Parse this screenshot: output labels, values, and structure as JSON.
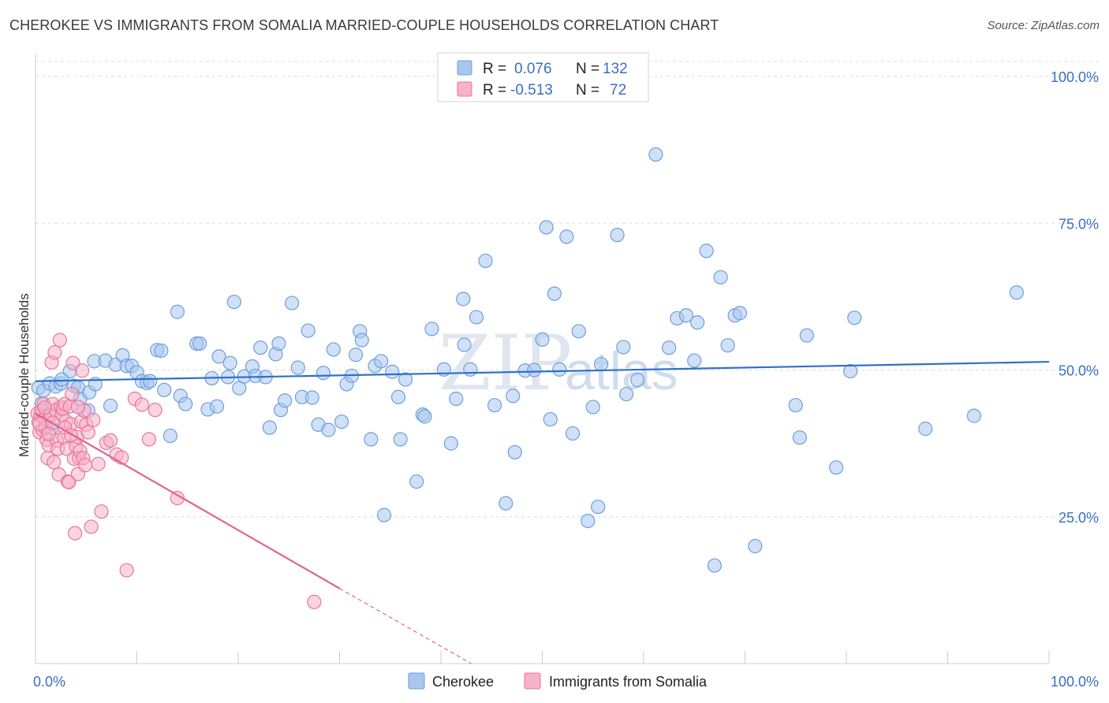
{
  "header": {
    "title": "CHEROKEE VS IMMIGRANTS FROM SOMALIA MARRIED-COUPLE HOUSEHOLDS CORRELATION CHART",
    "source": "Source: ZipAtlas.com"
  },
  "watermark": {
    "zip": "ZIP",
    "atlas": "atlas"
  },
  "legend_top": {
    "rows": [
      {
        "r_label": "R =",
        "r_value": "0.076",
        "n_label": "N =",
        "n_value": "132",
        "color": "#a9c6ee"
      },
      {
        "r_label": "R =",
        "r_value": "-0.513",
        "n_label": "N =",
        "n_value": "72",
        "color": "#f5b3c8"
      }
    ]
  },
  "legend_bottom": {
    "items": [
      {
        "label": "Cherokee",
        "color": "#a9c6ee"
      },
      {
        "label": "Immigrants from Somalia",
        "color": "#f5b3c8"
      }
    ]
  },
  "chart_data": {
    "type": "scatter",
    "title": "CHEROKEE VS IMMIGRANTS FROM SOMALIA MARRIED-COUPLE HOUSEHOLDS CORRELATION CHART",
    "xlabel": "",
    "ylabel": "Married-couple Households",
    "xlim": [
      0,
      100
    ],
    "ylim": [
      0,
      100
    ],
    "y_ticks": [
      {
        "value": 25,
        "label": "25.0%"
      },
      {
        "value": 50,
        "label": "50.0%"
      },
      {
        "value": 75,
        "label": "75.0%"
      },
      {
        "value": 100,
        "label": "100.0%"
      }
    ],
    "x_ticks": [
      {
        "value": 0,
        "label": "0.0%"
      },
      {
        "value": 100,
        "label": "100.0%"
      }
    ],
    "grid": true,
    "legend_placement": "top-center",
    "series": [
      {
        "name": "Cherokee",
        "color": "#6e9fdd",
        "fill": "#a9c6ee",
        "trend": {
          "x": [
            0,
            100
          ],
          "y": [
            48.1,
            51.4
          ],
          "color": "#2f6fcb"
        },
        "points": [
          [
            0.3,
            47.0
          ],
          [
            0.8,
            46.5
          ],
          [
            1.4,
            47.7
          ],
          [
            2.0,
            47.2
          ],
          [
            2.5,
            47.7
          ],
          [
            3.4,
            49.8
          ],
          [
            3.8,
            47.3
          ],
          [
            4.2,
            47.0
          ],
          [
            4.4,
            45.1
          ],
          [
            5.2,
            43.1
          ],
          [
            5.3,
            46.2
          ],
          [
            5.9,
            47.6
          ],
          [
            5.8,
            51.5
          ],
          [
            6.9,
            51.6
          ],
          [
            7.4,
            43.9
          ],
          [
            7.9,
            50.9
          ],
          [
            8.6,
            52.5
          ],
          [
            9.0,
            50.7
          ],
          [
            9.5,
            50.7
          ],
          [
            10.0,
            49.6
          ],
          [
            10.5,
            48.1
          ],
          [
            11.0,
            47.8
          ],
          [
            11.3,
            48.1
          ],
          [
            12.0,
            53.4
          ],
          [
            12.4,
            53.3
          ],
          [
            12.7,
            46.6
          ],
          [
            13.3,
            38.8
          ],
          [
            14.0,
            59.9
          ],
          [
            14.3,
            45.6
          ],
          [
            14.8,
            44.2
          ],
          [
            15.9,
            54.5
          ],
          [
            16.2,
            54.5
          ],
          [
            17.0,
            43.3
          ],
          [
            17.4,
            48.6
          ],
          [
            17.9,
            43.8
          ],
          [
            18.1,
            52.3
          ],
          [
            19.0,
            48.8
          ],
          [
            19.2,
            51.2
          ],
          [
            19.6,
            61.6
          ],
          [
            20.1,
            46.9
          ],
          [
            20.6,
            48.9
          ],
          [
            21.4,
            50.6
          ],
          [
            21.7,
            49.0
          ],
          [
            22.2,
            53.8
          ],
          [
            22.7,
            48.8
          ],
          [
            23.1,
            40.2
          ],
          [
            23.7,
            52.7
          ],
          [
            24.0,
            54.5
          ],
          [
            24.2,
            43.2
          ],
          [
            24.6,
            44.8
          ],
          [
            25.3,
            61.4
          ],
          [
            25.9,
            50.4
          ],
          [
            26.3,
            45.4
          ],
          [
            26.9,
            56.7
          ],
          [
            27.3,
            45.3
          ],
          [
            27.9,
            40.7
          ],
          [
            28.4,
            49.5
          ],
          [
            28.9,
            39.8
          ],
          [
            29.4,
            53.5
          ],
          [
            30.2,
            41.2
          ],
          [
            30.7,
            47.6
          ],
          [
            31.2,
            49.0
          ],
          [
            31.6,
            52.6
          ],
          [
            32.0,
            56.6
          ],
          [
            32.2,
            55.1
          ],
          [
            33.1,
            38.2
          ],
          [
            33.5,
            50.7
          ],
          [
            34.1,
            51.5
          ],
          [
            34.4,
            25.3
          ],
          [
            35.2,
            49.7
          ],
          [
            35.8,
            45.4
          ],
          [
            36.0,
            38.2
          ],
          [
            36.5,
            48.4
          ],
          [
            37.6,
            31.0
          ],
          [
            38.2,
            42.4
          ],
          [
            38.4,
            42.1
          ],
          [
            39.1,
            57.0
          ],
          [
            40.3,
            50.1
          ],
          [
            41.0,
            37.5
          ],
          [
            41.5,
            45.1
          ],
          [
            42.2,
            62.1
          ],
          [
            42.3,
            54.3
          ],
          [
            42.9,
            50.1
          ],
          [
            43.5,
            59.0
          ],
          [
            44.4,
            68.6
          ],
          [
            45.3,
            44.0
          ],
          [
            46.4,
            27.3
          ],
          [
            47.1,
            45.6
          ],
          [
            47.3,
            36.0
          ],
          [
            48.3,
            49.9
          ],
          [
            49.2,
            50.0
          ],
          [
            50.0,
            55.2
          ],
          [
            50.4,
            74.3
          ],
          [
            50.8,
            41.6
          ],
          [
            51.2,
            63.0
          ],
          [
            51.7,
            50.1
          ],
          [
            52.4,
            72.7
          ],
          [
            53.0,
            39.2
          ],
          [
            53.6,
            56.6
          ],
          [
            54.5,
            24.3
          ],
          [
            55.0,
            43.7
          ],
          [
            55.5,
            26.7
          ],
          [
            55.8,
            51.0
          ],
          [
            57.4,
            73.0
          ],
          [
            58.0,
            53.9
          ],
          [
            58.3,
            45.9
          ],
          [
            59.4,
            48.3
          ],
          [
            61.2,
            86.7
          ],
          [
            62.5,
            53.8
          ],
          [
            63.3,
            58.8
          ],
          [
            64.2,
            59.3
          ],
          [
            65.0,
            51.6
          ],
          [
            65.3,
            58.1
          ],
          [
            66.2,
            70.3
          ],
          [
            67.0,
            16.7
          ],
          [
            67.6,
            65.8
          ],
          [
            68.3,
            54.2
          ],
          [
            69.0,
            59.3
          ],
          [
            69.5,
            59.7
          ],
          [
            71.0,
            20.0
          ],
          [
            75.0,
            44.0
          ],
          [
            75.4,
            38.5
          ],
          [
            76.1,
            55.9
          ],
          [
            79.0,
            33.4
          ],
          [
            80.4,
            49.8
          ],
          [
            80.8,
            58.9
          ],
          [
            87.8,
            40.0
          ],
          [
            92.6,
            42.2
          ],
          [
            96.8,
            63.2
          ],
          [
            0.6,
            44.3
          ],
          [
            1.6,
            40.2
          ],
          [
            2.6,
            48.4
          ]
        ]
      },
      {
        "name": "Immigrants from Somalia",
        "color": "#e9769d",
        "fill": "#f5b3c8",
        "trend": {
          "x": [
            0,
            30
          ],
          "y": [
            42.6,
            12.8
          ],
          "dash_to": [
            43,
            0
          ],
          "color": "#e1638e"
        },
        "points": [
          [
            0.2,
            42.6
          ],
          [
            0.3,
            41.1
          ],
          [
            0.4,
            39.4
          ],
          [
            0.5,
            42.3
          ],
          [
            0.6,
            43.1
          ],
          [
            0.7,
            39.8
          ],
          [
            0.8,
            44.2
          ],
          [
            0.9,
            41.7
          ],
          [
            1.0,
            40.1
          ],
          [
            1.1,
            38.1
          ],
          [
            1.2,
            35.0
          ],
          [
            1.3,
            37.2
          ],
          [
            1.4,
            42.4
          ],
          [
            1.5,
            42.4
          ],
          [
            1.6,
            51.3
          ],
          [
            1.7,
            44.2
          ],
          [
            1.8,
            34.3
          ],
          [
            1.9,
            53.0
          ],
          [
            2.0,
            43.2
          ],
          [
            2.1,
            38.0
          ],
          [
            2.2,
            36.6
          ],
          [
            2.3,
            32.2
          ],
          [
            2.4,
            55.1
          ],
          [
            2.5,
            43.7
          ],
          [
            2.6,
            42.3
          ],
          [
            2.7,
            43.4
          ],
          [
            2.8,
            38.5
          ],
          [
            2.9,
            44.2
          ],
          [
            3.0,
            41.3
          ],
          [
            3.1,
            36.6
          ],
          [
            3.2,
            31.0
          ],
          [
            3.3,
            30.9
          ],
          [
            3.4,
            43.8
          ],
          [
            3.5,
            40.8
          ],
          [
            3.6,
            45.9
          ],
          [
            3.7,
            51.2
          ],
          [
            3.8,
            34.9
          ],
          [
            3.9,
            22.2
          ],
          [
            4.0,
            37.0
          ],
          [
            4.1,
            38.6
          ],
          [
            4.2,
            32.3
          ],
          [
            4.3,
            35.0
          ],
          [
            4.4,
            36.2
          ],
          [
            4.5,
            41.2
          ],
          [
            4.6,
            49.9
          ],
          [
            4.7,
            35.0
          ],
          [
            4.8,
            43.1
          ],
          [
            4.9,
            33.8
          ],
          [
            5.0,
            40.7
          ],
          [
            5.2,
            39.4
          ],
          [
            5.5,
            23.3
          ],
          [
            5.7,
            41.5
          ],
          [
            6.2,
            34.0
          ],
          [
            6.5,
            25.9
          ],
          [
            7.0,
            37.6
          ],
          [
            7.4,
            38.0
          ],
          [
            8.0,
            35.6
          ],
          [
            8.5,
            35.1
          ],
          [
            9.0,
            15.9
          ],
          [
            9.8,
            45.1
          ],
          [
            10.5,
            44.1
          ],
          [
            11.2,
            38.2
          ],
          [
            11.8,
            43.2
          ],
          [
            14.0,
            28.2
          ],
          [
            27.5,
            10.5
          ],
          [
            0.4,
            40.8
          ],
          [
            0.9,
            43.6
          ],
          [
            1.7,
            41.0
          ],
          [
            2.9,
            40.2
          ],
          [
            3.5,
            38.9
          ],
          [
            4.2,
            43.7
          ],
          [
            1.3,
            39.1
          ]
        ]
      }
    ]
  }
}
